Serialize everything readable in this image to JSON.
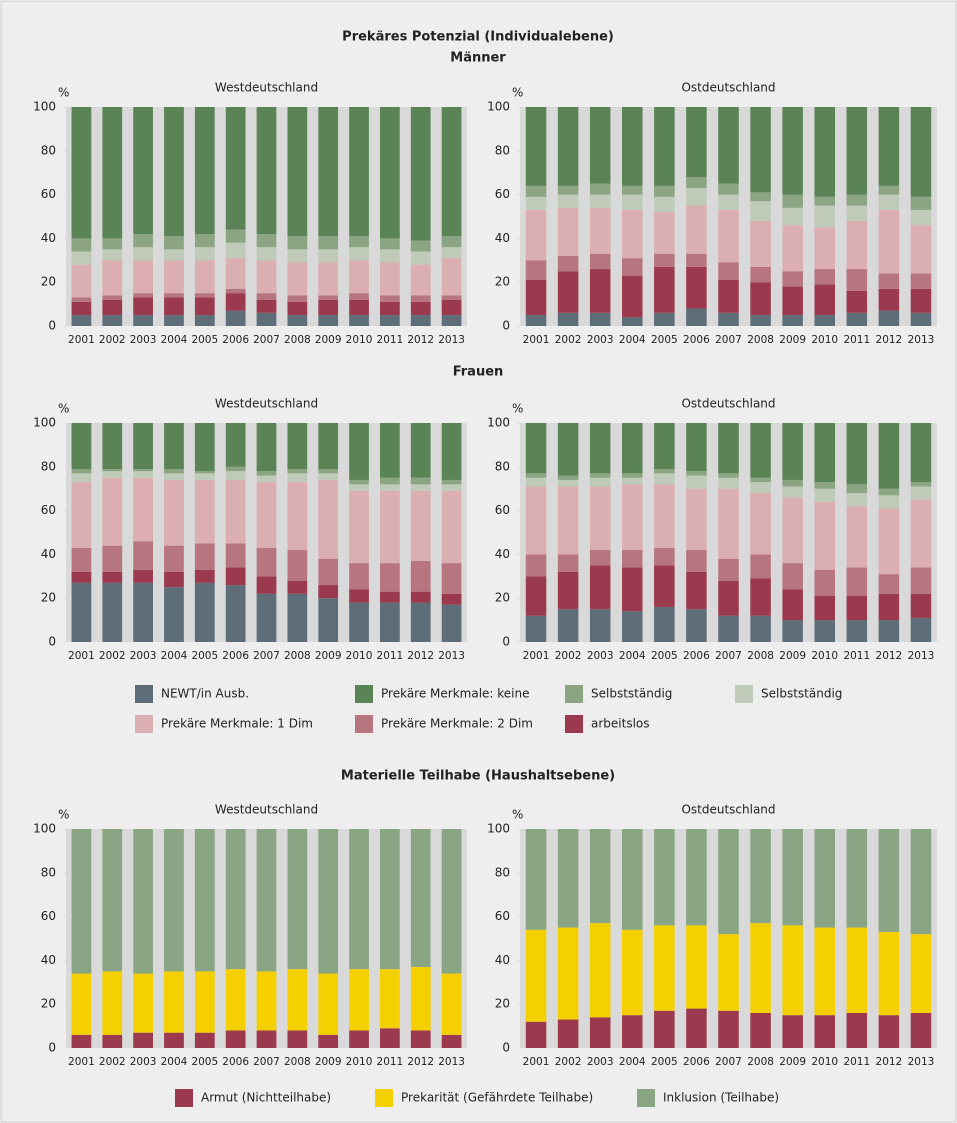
{
  "chart_data": [
    {
      "type": "bar",
      "stacked": true,
      "title": "Prekäres Potenzial (Individualebene)",
      "ylabel": "%",
      "categories": [
        "2001",
        "2002",
        "2003",
        "2004",
        "2005",
        "2006",
        "2007",
        "2008",
        "2009",
        "2010",
        "2011",
        "2012",
        "2013"
      ],
      "ylim": [
        0,
        100
      ],
      "yticks": [
        0,
        20,
        40,
        60,
        80,
        100
      ],
      "series": [
        {
          "name": "NEWT/in Ausb.",
          "color": "#5d6e79"
        },
        {
          "name": "arbeitslos",
          "color": "#9b3a4f"
        },
        {
          "name": "Prekäre Merkmale: 2 Dim",
          "color": "#b77580"
        },
        {
          "name": "Prekäre Merkmale: 1 Dim",
          "color": "#dbaeb1"
        },
        {
          "name": "Selbstständig",
          "color": "#bfcbb8"
        },
        {
          "name": "Selbstständig",
          "color": "#8ba482"
        },
        {
          "name": "Prekäre Merkmale: keine",
          "color": "#5a8456"
        }
      ],
      "groups": [
        {
          "title": "Männer",
          "panels": [
            {
              "title": "Westdeutschland",
              "values": [
                [
                  5,
                  5,
                  5,
                  5,
                  5,
                  7,
                  6,
                  5,
                  5,
                  5,
                  5,
                  5,
                  5
                ],
                [
                  6,
                  7,
                  8,
                  8,
                  8,
                  8,
                  6,
                  6,
                  7,
                  7,
                  6,
                  6,
                  7
                ],
                [
                  2,
                  2,
                  2,
                  2,
                  2,
                  2,
                  3,
                  3,
                  2,
                  3,
                  3,
                  3,
                  2
                ],
                [
                  15,
                  16,
                  15,
                  15,
                  15,
                  14,
                  15,
                  15,
                  15,
                  15,
                  15,
                  14,
                  17
                ],
                [
                  6,
                  5,
                  6,
                  5,
                  6,
                  7,
                  6,
                  6,
                  6,
                  6,
                  6,
                  6,
                  5
                ],
                [
                  6,
                  5,
                  6,
                  6,
                  6,
                  6,
                  6,
                  6,
                  6,
                  5,
                  5,
                  5,
                  5
                ],
                [
                  60,
                  60,
                  58,
                  59,
                  58,
                  56,
                  58,
                  59,
                  59,
                  59,
                  60,
                  61,
                  59
                ]
              ]
            },
            {
              "title": "Ostdeutschland",
              "values": [
                [
                  5,
                  6,
                  6,
                  4,
                  6,
                  8,
                  6,
                  5,
                  5,
                  5,
                  6,
                  7,
                  6
                ],
                [
                  16,
                  19,
                  20,
                  19,
                  21,
                  19,
                  15,
                  15,
                  13,
                  14,
                  10,
                  10,
                  11
                ],
                [
                  9,
                  7,
                  7,
                  8,
                  6,
                  6,
                  8,
                  7,
                  7,
                  7,
                  10,
                  7,
                  7
                ],
                [
                  23,
                  22,
                  21,
                  22,
                  19,
                  22,
                  24,
                  21,
                  21,
                  19,
                  22,
                  29,
                  22
                ],
                [
                  6,
                  6,
                  6,
                  7,
                  7,
                  8,
                  7,
                  9,
                  8,
                  10,
                  7,
                  7,
                  7
                ],
                [
                  5,
                  4,
                  5,
                  4,
                  5,
                  5,
                  5,
                  4,
                  6,
                  4,
                  5,
                  4,
                  6
                ],
                [
                  36,
                  36,
                  35,
                  36,
                  36,
                  32,
                  35,
                  39,
                  40,
                  41,
                  40,
                  36,
                  41
                ]
              ]
            }
          ]
        },
        {
          "title": "Frauen",
          "panels": [
            {
              "title": "Westdeutschland",
              "values": [
                [
                  27,
                  27,
                  27,
                  25,
                  27,
                  26,
                  22,
                  22,
                  20,
                  18,
                  18,
                  18,
                  17
                ],
                [
                  5,
                  5,
                  6,
                  7,
                  6,
                  8,
                  8,
                  6,
                  6,
                  6,
                  5,
                  5,
                  5
                ],
                [
                  11,
                  12,
                  13,
                  12,
                  12,
                  11,
                  13,
                  14,
                  12,
                  12,
                  13,
                  14,
                  14
                ],
                [
                  30,
                  31,
                  29,
                  30,
                  29,
                  29,
                  30,
                  31,
                  36,
                  33,
                  33,
                  32,
                  33
                ],
                [
                  4,
                  3,
                  3,
                  3,
                  3,
                  4,
                  3,
                  4,
                  3,
                  3,
                  3,
                  3,
                  3
                ],
                [
                  2,
                  1,
                  1,
                  2,
                  1,
                  2,
                  2,
                  2,
                  2,
                  2,
                  3,
                  3,
                  2
                ],
                [
                  21,
                  21,
                  21,
                  21,
                  22,
                  20,
                  22,
                  21,
                  21,
                  26,
                  25,
                  25,
                  26
                ]
              ]
            },
            {
              "title": "Ostdeutschland",
              "values": [
                [
                  12,
                  15,
                  15,
                  14,
                  16,
                  15,
                  12,
                  12,
                  10,
                  10,
                  10,
                  10,
                  11
                ],
                [
                  18,
                  17,
                  20,
                  20,
                  19,
                  17,
                  16,
                  17,
                  14,
                  11,
                  11,
                  12,
                  11
                ],
                [
                  10,
                  8,
                  7,
                  8,
                  8,
                  10,
                  10,
                  11,
                  12,
                  12,
                  13,
                  9,
                  12
                ],
                [
                  31,
                  31,
                  29,
                  30,
                  29,
                  28,
                  32,
                  28,
                  30,
                  31,
                  28,
                  30,
                  31
                ],
                [
                  4,
                  3,
                  4,
                  3,
                  5,
                  6,
                  5,
                  5,
                  5,
                  6,
                  6,
                  6,
                  6
                ],
                [
                  2,
                  2,
                  2,
                  2,
                  2,
                  2,
                  2,
                  2,
                  3,
                  3,
                  4,
                  3,
                  2
                ],
                [
                  23,
                  24,
                  23,
                  23,
                  21,
                  22,
                  23,
                  25,
                  26,
                  27,
                  28,
                  30,
                  27
                ]
              ]
            }
          ]
        }
      ]
    },
    {
      "type": "bar",
      "stacked": true,
      "title": "Materielle Teilhabe (Haushaltsebene)",
      "ylabel": "%",
      "categories": [
        "2001",
        "2002",
        "2003",
        "2004",
        "2005",
        "2006",
        "2007",
        "2008",
        "2009",
        "2010",
        "2011",
        "2012",
        "2013"
      ],
      "ylim": [
        0,
        100
      ],
      "yticks": [
        0,
        20,
        40,
        60,
        80,
        100
      ],
      "series": [
        {
          "name": "Armut (Nichtteilhabe)",
          "color": "#9b3a4f"
        },
        {
          "name": "Prekarität (Gefährdete Teilhabe)",
          "color": "#f5d000"
        },
        {
          "name": "Inklusion (Teilhabe)",
          "color": "#8aa583"
        }
      ],
      "groups": [
        {
          "panels": [
            {
              "title": "Westdeutschland",
              "values": [
                [
                  6,
                  6,
                  7,
                  7,
                  7,
                  8,
                  8,
                  8,
                  6,
                  8,
                  9,
                  8,
                  6
                ],
                [
                  28,
                  29,
                  27,
                  28,
                  28,
                  28,
                  27,
                  28,
                  28,
                  28,
                  27,
                  29,
                  28
                ],
                [
                  66,
                  65,
                  66,
                  65,
                  65,
                  64,
                  65,
                  64,
                  66,
                  64,
                  64,
                  63,
                  66
                ]
              ]
            },
            {
              "title": "Ostdeutschland",
              "values": [
                [
                  12,
                  13,
                  14,
                  15,
                  17,
                  18,
                  17,
                  16,
                  15,
                  15,
                  16,
                  15,
                  16
                ],
                [
                  42,
                  42,
                  43,
                  39,
                  39,
                  38,
                  35,
                  41,
                  41,
                  40,
                  39,
                  38,
                  36
                ],
                [
                  46,
                  45,
                  43,
                  46,
                  44,
                  44,
                  48,
                  43,
                  44,
                  45,
                  45,
                  47,
                  48
                ]
              ]
            }
          ]
        }
      ]
    }
  ]
}
